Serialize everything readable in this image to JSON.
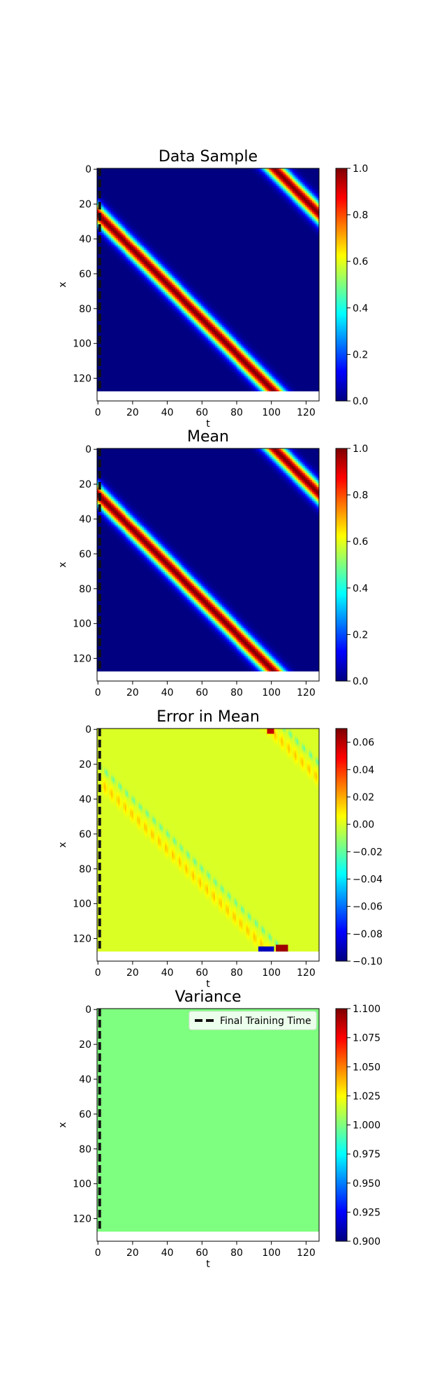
{
  "figure": {
    "legend_label": "Final Training Time",
    "legend_placement": "upper-right of last panel",
    "colormap": "jet",
    "marker_line_style": "dashed black vertical line at t = 1"
  },
  "chart_data": [
    {
      "type": "heatmap",
      "title": "Data Sample",
      "xlabel": "t",
      "ylabel": "x",
      "xlim": [
        0,
        127
      ],
      "ylim": [
        128,
        0
      ],
      "xticks": [
        "0",
        "20",
        "40",
        "60",
        "80",
        "100",
        "120"
      ],
      "yticks": [
        "0",
        "20",
        "40",
        "60",
        "80",
        "100",
        "120"
      ],
      "colorbar": {
        "min": 0.0,
        "max": 1.0,
        "ticks": [
          "0.0",
          "0.2",
          "0.4",
          "0.6",
          "0.8",
          "1.0"
        ]
      },
      "field": {
        "kind": "advected-pulse",
        "start_x": 26,
        "velocity": 1.0,
        "period": 128,
        "width": 4.5,
        "peak": 1.0,
        "background": 0.0
      },
      "marker_t": 1
    },
    {
      "type": "heatmap",
      "title": "Mean",
      "xlabel": "",
      "ylabel": "x",
      "xlim": [
        0,
        127
      ],
      "ylim": [
        128,
        0
      ],
      "xticks": [
        "0",
        "20",
        "40",
        "60",
        "80",
        "100",
        "120"
      ],
      "yticks": [
        "0",
        "20",
        "40",
        "60",
        "80",
        "100",
        "120"
      ],
      "colorbar": {
        "min": 0.0,
        "max": 1.0,
        "ticks": [
          "0.0",
          "0.2",
          "0.4",
          "0.6",
          "0.8",
          "1.0"
        ]
      },
      "field": {
        "kind": "advected-pulse",
        "start_x": 26,
        "velocity": 1.0,
        "period": 128,
        "width": 4.5,
        "peak": 1.0,
        "background": 0.0
      },
      "marker_t": 1
    },
    {
      "type": "heatmap",
      "title": "Error in Mean",
      "xlabel": "t",
      "ylabel": "x",
      "xlim": [
        0,
        127
      ],
      "ylim": [
        128,
        0
      ],
      "xticks": [
        "0",
        "20",
        "40",
        "60",
        "80",
        "100",
        "120"
      ],
      "yticks": [
        "0",
        "20",
        "40",
        "60",
        "80",
        "100",
        "120"
      ],
      "colorbar": {
        "min": -0.1,
        "max": 0.07,
        "ticks": [
          "−0.10",
          "−0.08",
          "−0.06",
          "−0.04",
          "−0.02",
          "0.00",
          "0.02",
          "0.04",
          "0.06"
        ]
      },
      "field": {
        "kind": "error-pulse",
        "start_x": 26,
        "velocity": 1.0,
        "period": 128,
        "width": 4.5,
        "background": 0.0,
        "lead_amp": 0.016,
        "trail_amp": -0.02,
        "edge_low": -0.09,
        "edge_high": 0.065
      },
      "marker_t": 1
    },
    {
      "type": "heatmap",
      "title": "Variance",
      "xlabel": "t",
      "ylabel": "x",
      "xlim": [
        0,
        127
      ],
      "ylim": [
        128,
        0
      ],
      "xticks": [
        "0",
        "20",
        "40",
        "60",
        "80",
        "100",
        "120"
      ],
      "yticks": [
        "0",
        "20",
        "40",
        "60",
        "80",
        "100",
        "120"
      ],
      "colorbar": {
        "min": 0.9,
        "max": 1.1,
        "ticks": [
          "0.900",
          "0.925",
          "0.950",
          "0.975",
          "1.000",
          "1.025",
          "1.050",
          "1.075",
          "1.100"
        ]
      },
      "field": {
        "kind": "constant",
        "value": 1.0
      },
      "marker_t": 1,
      "legend": [
        "Final Training Time"
      ]
    }
  ]
}
